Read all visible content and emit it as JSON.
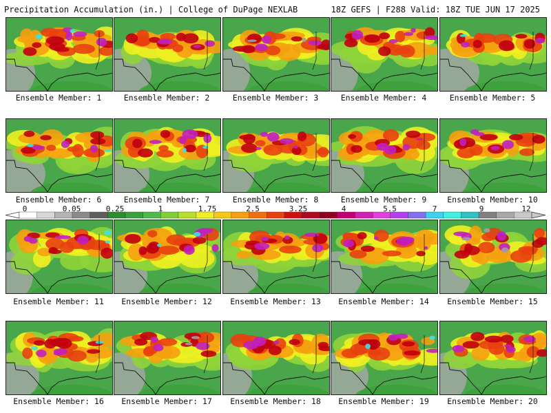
{
  "header": {
    "left_title": "Precipitation Accumulation (in.) | College of DuPage NEXLAB",
    "right_title": "18Z GEFS | F288 Valid: 18Z TUE JUN 17 2025"
  },
  "member_label_prefix": "Ensemble Member: ",
  "members": [
    {
      "label": "Ensemble Member: 1",
      "intensity": 0.7,
      "west_dry": 0.4,
      "max_color": "#40e0e0"
    },
    {
      "label": "Ensemble Member: 2",
      "intensity": 0.45,
      "west_dry": 0.8,
      "max_color": "#c020c0"
    },
    {
      "label": "Ensemble Member: 3",
      "intensity": 0.55,
      "west_dry": 0.3,
      "max_color": "#a0a0a0"
    },
    {
      "label": "Ensemble Member: 4",
      "intensity": 0.65,
      "west_dry": 0.3,
      "max_color": "#c020c0"
    },
    {
      "label": "Ensemble Member: 5",
      "intensity": 0.35,
      "west_dry": 0.9,
      "max_color": "#40e0e0"
    },
    {
      "label": "Ensemble Member: 6",
      "intensity": 0.65,
      "west_dry": 0.9,
      "max_color": "#40e0e0"
    },
    {
      "label": "Ensemble Member: 7",
      "intensity": 0.7,
      "west_dry": 0.7,
      "max_color": "#40e0e0"
    },
    {
      "label": "Ensemble Member: 8",
      "intensity": 0.55,
      "west_dry": 0.5,
      "max_color": "#c020c0"
    },
    {
      "label": "Ensemble Member: 9",
      "intensity": 0.6,
      "west_dry": 0.6,
      "max_color": "#c020c0"
    },
    {
      "label": "Ensemble Member: 10",
      "intensity": 0.6,
      "west_dry": 0.4,
      "max_color": "#c020c0"
    },
    {
      "label": "Ensemble Member: 11",
      "intensity": 0.75,
      "west_dry": 0.3,
      "max_color": "#40e0e0"
    },
    {
      "label": "Ensemble Member: 12",
      "intensity": 0.75,
      "west_dry": 0.6,
      "max_color": "#40e0e0"
    },
    {
      "label": "Ensemble Member: 13",
      "intensity": 0.55,
      "west_dry": 0.7,
      "max_color": "#c020c0"
    },
    {
      "label": "Ensemble Member: 14",
      "intensity": 0.65,
      "west_dry": 0.5,
      "max_color": "#c020c0"
    },
    {
      "label": "Ensemble Member: 15",
      "intensity": 0.85,
      "west_dry": 0.5,
      "max_color": "#a0a0a0"
    },
    {
      "label": "Ensemble Member: 16",
      "intensity": 0.65,
      "west_dry": 0.6,
      "max_color": "#40e0e0"
    },
    {
      "label": "Ensemble Member: 17",
      "intensity": 0.65,
      "west_dry": 0.5,
      "max_color": "#a0a0a0"
    },
    {
      "label": "Ensemble Member: 18",
      "intensity": 0.45,
      "west_dry": 0.4,
      "max_color": "#c020c0"
    },
    {
      "label": "Ensemble Member: 19",
      "intensity": 0.55,
      "west_dry": 0.8,
      "max_color": "#40e0e0"
    },
    {
      "label": "Ensemble Member: 20",
      "intensity": 0.55,
      "west_dry": 0.3,
      "max_color": "#c020c0"
    }
  ],
  "colorbar": {
    "tick_labels": [
      "0",
      "0.05",
      "0.25",
      "1",
      "1.75",
      "2.5",
      "3.25",
      "4",
      "5.5",
      "7",
      "9",
      "12"
    ],
    "colors": [
      "#ffffff",
      "#d8d8d8",
      "#b4b4b4",
      "#8a8a8a",
      "#5e5e5e",
      "#2e8b2e",
      "#3ca03c",
      "#4fb84f",
      "#7fcf3a",
      "#b8e02a",
      "#f0f020",
      "#f5c818",
      "#f5a010",
      "#f07010",
      "#e84010",
      "#d01010",
      "#b00820",
      "#900020",
      "#c00070",
      "#d020b0",
      "#e040e0",
      "#b040f0",
      "#8070f0",
      "#40d0f0",
      "#40f0e0",
      "#30c0c0",
      "#808080",
      "#a8a8a8",
      "#c8c8c8"
    ]
  }
}
